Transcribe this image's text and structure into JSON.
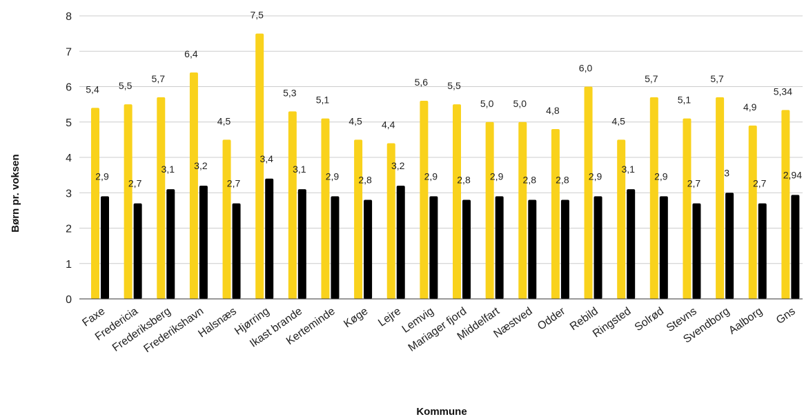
{
  "chart_data": {
    "type": "bar",
    "xlabel": "Kommune",
    "ylabel": "Børn pr. voksen",
    "ylim": [
      0,
      8
    ],
    "yticks": [
      0,
      1,
      2,
      3,
      4,
      5,
      6,
      7,
      8
    ],
    "grid": true,
    "colors": [
      "#F9D21C",
      "#000000"
    ],
    "categories": [
      "Faxe",
      "Fredericia",
      "Frederiksberg",
      "Frederikshavn",
      "Halsnæs",
      "Hjørring",
      "Ikast brande",
      "Kerteminde",
      "Køge",
      "Lejre",
      "Lemvig",
      "Mariager fjord",
      "Middelfart",
      "Næstved",
      "Odder",
      "Rebild",
      "Ringsted",
      "Solrød",
      "Stevns",
      "Svendborg",
      "Aalborg",
      "Gns"
    ],
    "series": [
      {
        "values": [
          5.4,
          5.5,
          5.7,
          6.4,
          4.5,
          7.5,
          5.3,
          5.1,
          4.5,
          4.4,
          5.6,
          5.5,
          5.0,
          5.0,
          4.8,
          6.0,
          4.5,
          5.7,
          5.1,
          5.7,
          4.9,
          5.34
        ],
        "labels": [
          "5,4",
          "5,5",
          "5,7",
          "6,4",
          "4,5",
          "7,5",
          "5,3",
          "5,1",
          "4,5",
          "4,4",
          "5,6",
          "5,5",
          "5,0",
          "5,0",
          "4,8",
          "6,0",
          "4,5",
          "5,7",
          "5,1",
          "5,7",
          "4,9",
          "5,34"
        ]
      },
      {
        "values": [
          2.9,
          2.7,
          3.1,
          3.2,
          2.7,
          3.4,
          3.1,
          2.9,
          2.8,
          3.2,
          2.9,
          2.8,
          2.9,
          2.8,
          2.8,
          2.9,
          3.1,
          2.9,
          2.7,
          3.0,
          2.7,
          2.94
        ],
        "labels": [
          "2,9",
          "2,7",
          "3,1",
          "3,2",
          "2,7",
          "3,4",
          "3,1",
          "2,9",
          "2,8",
          "3,2",
          "2,9",
          "2,8",
          "2,9",
          "2,8",
          "2,8",
          "2,9",
          "3,1",
          "2,9",
          "2,7",
          "3",
          "2,7",
          "2,94"
        ]
      }
    ]
  }
}
